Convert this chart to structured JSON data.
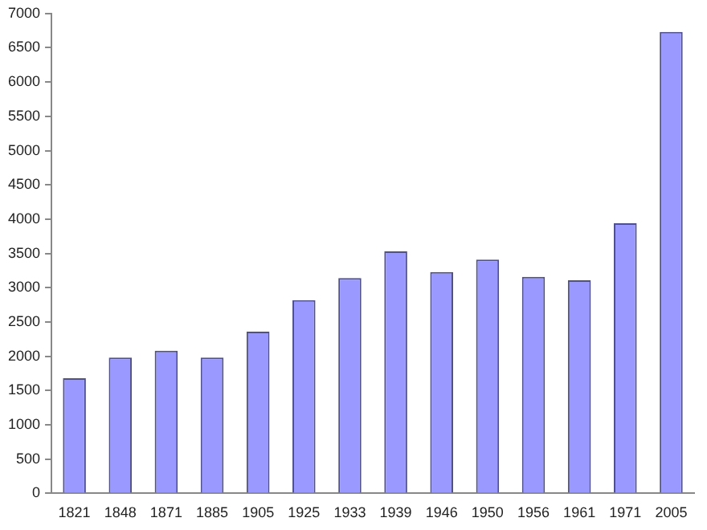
{
  "chart_data": {
    "type": "bar",
    "categories": [
      "1821",
      "1848",
      "1871",
      "1885",
      "1905",
      "1925",
      "1933",
      "1939",
      "1946",
      "1950",
      "1956",
      "1961",
      "1971",
      "2005"
    ],
    "values": [
      1680,
      1980,
      2080,
      1980,
      2360,
      2820,
      3140,
      3530,
      3230,
      3410,
      3160,
      3110,
      3940,
      6730
    ],
    "color": "#9999ff",
    "ylim": [
      0,
      7000
    ],
    "yticks": [
      0,
      500,
      1000,
      1500,
      2000,
      2500,
      3000,
      3500,
      4000,
      4500,
      5000,
      5500,
      6000,
      6500,
      7000
    ],
    "grid": false,
    "legend": false
  }
}
